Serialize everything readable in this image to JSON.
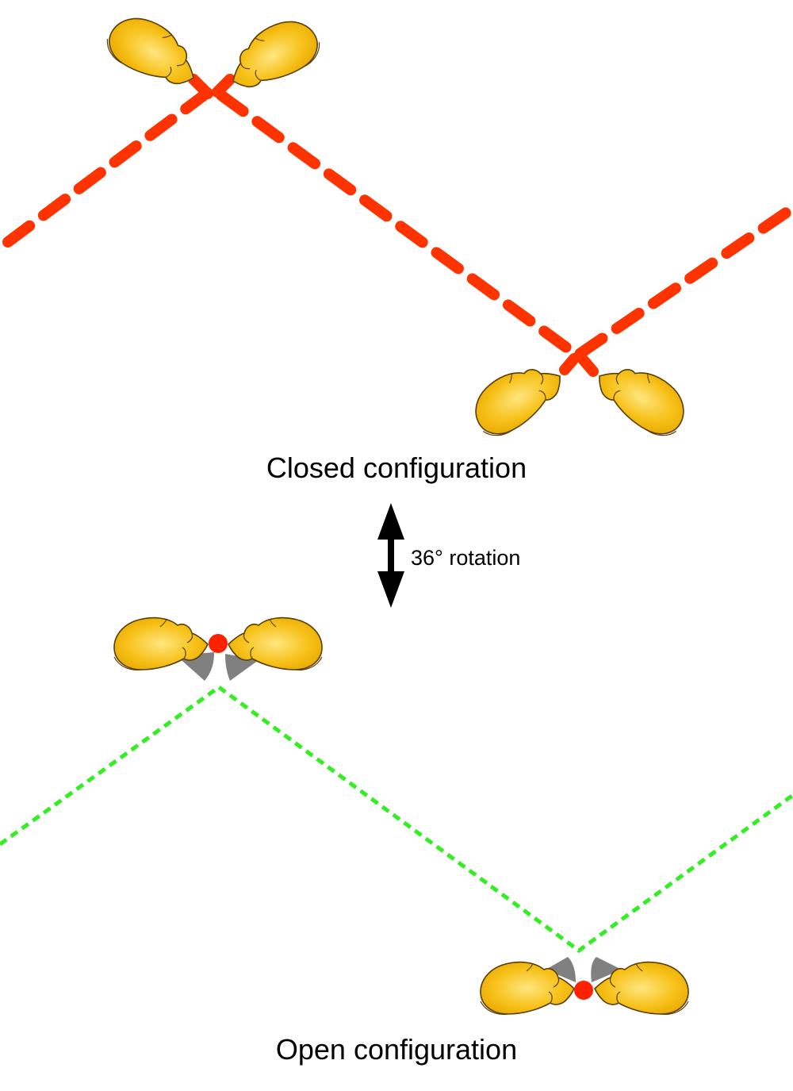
{
  "closed": {
    "label": "Closed configuration",
    "line_color": "#ff3300"
  },
  "rotation": {
    "label": "36° rotation",
    "arrow_color": "#000000"
  },
  "open": {
    "label": "Open configuration",
    "line_color": "#33ee22",
    "wedge_color": "#808080",
    "dot_color": "#ff2200"
  },
  "molecule_color": "#f5b800",
  "molecule_highlight": "#ffe070",
  "molecule_outline": "#6b4a00"
}
